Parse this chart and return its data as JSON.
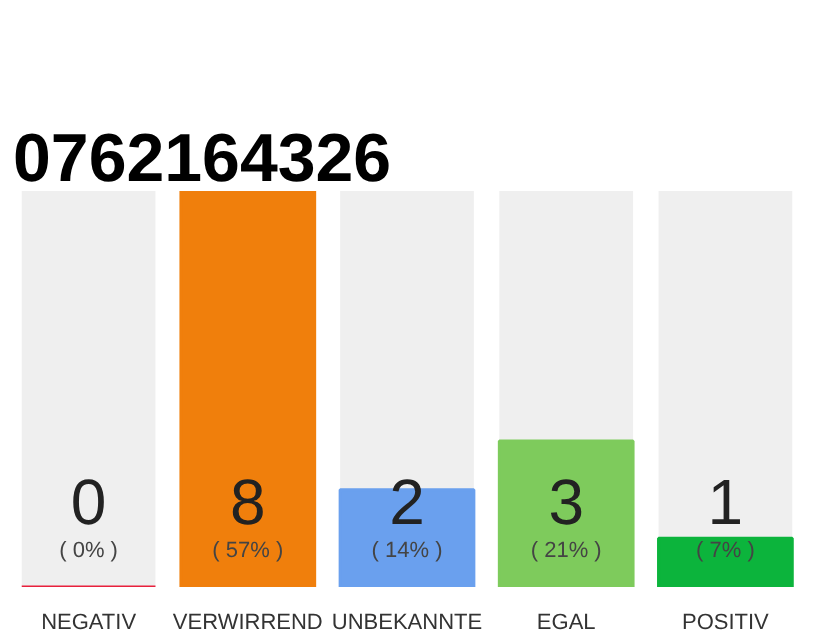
{
  "chart_data": {
    "type": "bar",
    "title": "0762164326",
    "categories": [
      "NEGATIV",
      "VERWIRREND",
      "UNBEKANNTE",
      "EGAL",
      "POSITIV"
    ],
    "values": [
      0,
      57,
      14,
      21,
      7
    ],
    "annotations": [
      "0",
      "8",
      "2",
      "3",
      "1"
    ],
    "colors": [
      "#e8203c",
      "#f07f0c",
      "#6aa0ee",
      "#7ecb5c",
      "#0cb43c"
    ],
    "value_labels": [
      "( 0% )",
      "( 57% )",
      "( 14% )",
      "( 21% )",
      "( 7% )"
    ]
  }
}
